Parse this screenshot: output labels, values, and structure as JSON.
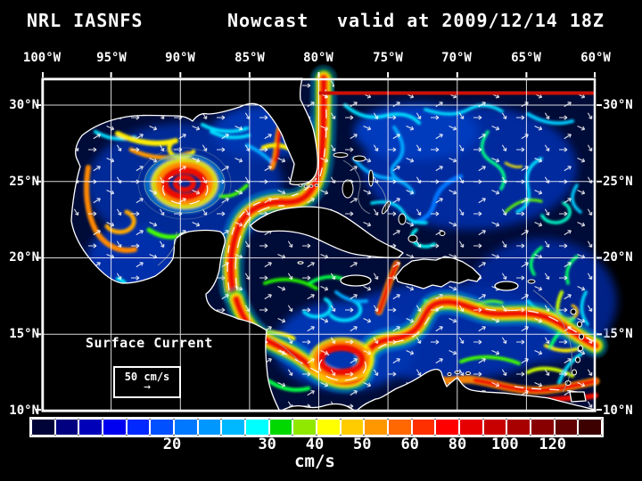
{
  "title": {
    "model": "NRL IASNFS",
    "product": "Nowcast",
    "valid": "valid at 2009/12/14 18Z"
  },
  "axes": {
    "top": [
      "100°W",
      "95°W",
      "90°W",
      "85°W",
      "80°W",
      "75°W",
      "70°W",
      "65°W",
      "60°W"
    ],
    "left": [
      "30°N",
      "25°N",
      "20°N",
      "15°N",
      "10°N"
    ],
    "right": [
      "30°N",
      "25°N",
      "20°N",
      "15°N",
      "10°N"
    ]
  },
  "annotation": {
    "label": "Surface Current",
    "scale_text": "50 cm/s",
    "scale_arrow": "→"
  },
  "colorbar": {
    "units": "cm/s",
    "ticks": [
      {
        "label": "20",
        "pos": 0.25
      },
      {
        "label": "30",
        "pos": 0.4167
      },
      {
        "label": "40",
        "pos": 0.5
      },
      {
        "label": "50",
        "pos": 0.5833
      },
      {
        "label": "60",
        "pos": 0.6667
      },
      {
        "label": "80",
        "pos": 0.75
      },
      {
        "label": "100",
        "pos": 0.8333
      },
      {
        "label": "120",
        "pos": 0.9167
      }
    ],
    "segment_colors": [
      "#000338",
      "#000080",
      "#0000b8",
      "#0000f0",
      "#0028ff",
      "#0050ff",
      "#0078ff",
      "#0098ff",
      "#00b8ff",
      "#00ffff",
      "#00d800",
      "#90e800",
      "#ffff00",
      "#ffcc00",
      "#ff9800",
      "#ff6800",
      "#ff3000",
      "#ff0000",
      "#e60000",
      "#c80000",
      "#a80000",
      "#880000",
      "#600000",
      "#3c0000"
    ]
  },
  "colors": {
    "background": "#000000",
    "text": "#ffffff",
    "grid": "#ffffff",
    "ocean": "#000c38",
    "land": "#000000",
    "coastline": "#ffffff"
  }
}
